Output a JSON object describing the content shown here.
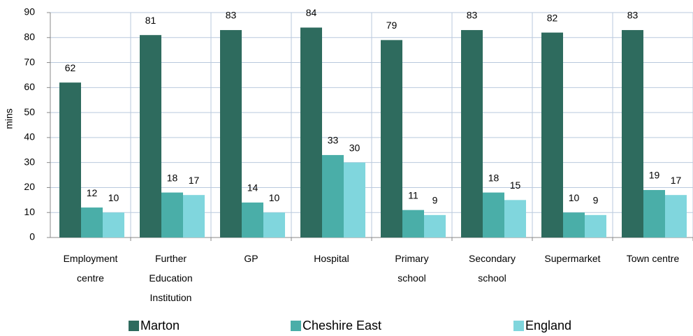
{
  "chart_data": {
    "type": "bar",
    "y_label": "mins",
    "categories": [
      "Employment centre",
      "Further Education Institution",
      "GP",
      "Hospital",
      "Primary school",
      "Secondary school",
      "Supermarket",
      "Town centre"
    ],
    "series": [
      {
        "name": "Marton",
        "color": "#2e6b5e",
        "values": [
          62,
          81,
          83,
          84,
          79,
          83,
          82,
          83
        ]
      },
      {
        "name": "Cheshire East",
        "color": "#4aaea8",
        "values": [
          12,
          18,
          14,
          33,
          11,
          18,
          10,
          19
        ]
      },
      {
        "name": "England",
        "color": "#80d6dd",
        "values": [
          10,
          17,
          10,
          30,
          9,
          15,
          9,
          17
        ]
      }
    ],
    "ylim": [
      0,
      90
    ],
    "yticks": [
      0,
      10,
      20,
      30,
      40,
      50,
      60,
      70,
      80,
      90
    ],
    "grid": true,
    "legend": "bottom"
  }
}
